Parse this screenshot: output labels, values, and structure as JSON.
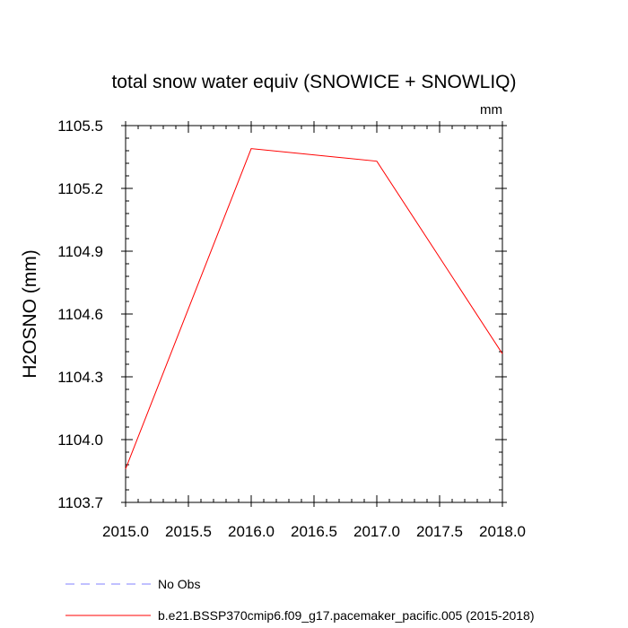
{
  "chart_data": {
    "type": "line",
    "title": "total snow water equiv (SNOWICE + SNOWLIQ)",
    "units": "mm",
    "ylabel": "H2OSNO  (mm)",
    "xlabel": "",
    "xlim": [
      2015.0,
      2018.0
    ],
    "ylim": [
      1103.7,
      1105.5
    ],
    "xticks": [
      2015.0,
      2015.5,
      2016.0,
      2016.5,
      2017.0,
      2017.5,
      2018.0
    ],
    "xtick_labels": [
      "2015.0",
      "2015.5",
      "2016.0",
      "2016.5",
      "2017.0",
      "2017.5",
      "2018.0"
    ],
    "yticks": [
      1103.7,
      1104.0,
      1104.3,
      1104.6,
      1104.9,
      1105.2,
      1105.5
    ],
    "ytick_labels": [
      "1103.7",
      "1104.0",
      "1104.3",
      "1104.6",
      "1104.9",
      "1105.2",
      "1105.5"
    ],
    "grid": false,
    "legend_position": "bottom",
    "series": [
      {
        "name": "b.e21.BSSP370cmip6.f09_g17.pacemaker_pacific.005 (2015-2018)",
        "color": "#ff0000",
        "dash": "solid",
        "x": [
          2015.0,
          2016.0,
          2017.0,
          2018.0
        ],
        "y": [
          1103.86,
          1105.39,
          1105.33,
          1104.41
        ]
      }
    ],
    "legend": [
      {
        "label": "No Obs",
        "color": "#8080ff",
        "dash": "dashed"
      },
      {
        "label": "b.e21.BSSP370cmip6.f09_g17.pacemaker_pacific.005 (2015-2018)",
        "color": "#ff0000",
        "dash": "solid"
      }
    ]
  }
}
